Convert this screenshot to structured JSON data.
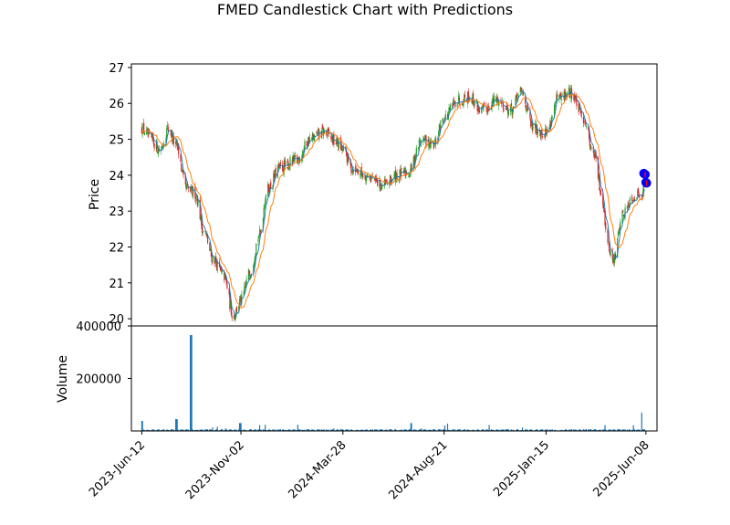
{
  "chart_data": {
    "type": "candlestick",
    "title": "FMED Candlestick Chart with Predictions",
    "xlabel": "",
    "ylabel": "Price",
    "volume_label": "Volume",
    "x_ticks": [
      "2023-Jun-12",
      "2023-Nov-02",
      "2024-Mar-28",
      "2024-Aug-21",
      "2025-Jan-15",
      "2025-Jun-08"
    ],
    "x_range": [
      "2023-05-28",
      "2025-06-24"
    ],
    "price_ylim": [
      19.8,
      27.1
    ],
    "price_ticks": [
      20,
      21,
      22,
      23,
      24,
      25,
      26,
      27
    ],
    "volume_ylim": [
      0,
      400000
    ],
    "volume_ticks": [
      200000,
      400000
    ],
    "price_keypoints": [
      [
        "2023-06-12",
        25.3
      ],
      [
        "2023-06-25",
        25.0
      ],
      [
        "2023-07-08",
        24.7
      ],
      [
        "2023-07-20",
        25.3
      ],
      [
        "2023-08-01",
        24.8
      ],
      [
        "2023-08-15",
        23.6
      ],
      [
        "2023-08-28",
        23.5
      ],
      [
        "2023-09-10",
        22.4
      ],
      [
        "2023-09-22",
        21.7
      ],
      [
        "2023-10-08",
        21.2
      ],
      [
        "2023-10-22",
        20.1
      ],
      [
        "2023-11-02",
        20.5
      ],
      [
        "2023-11-15",
        21.3
      ],
      [
        "2023-11-28",
        22.3
      ],
      [
        "2023-12-10",
        23.6
      ],
      [
        "2023-12-28",
        24.2
      ],
      [
        "2024-01-20",
        24.4
      ],
      [
        "2024-02-10",
        25.0
      ],
      [
        "2024-03-01",
        25.2
      ],
      [
        "2024-03-20",
        24.9
      ],
      [
        "2024-03-28",
        24.7
      ],
      [
        "2024-04-10",
        24.2
      ],
      [
        "2024-05-01",
        24.0
      ],
      [
        "2024-05-25",
        23.7
      ],
      [
        "2024-06-15",
        24.0
      ],
      [
        "2024-07-01",
        24.1
      ],
      [
        "2024-07-20",
        25.0
      ],
      [
        "2024-08-05",
        24.8
      ],
      [
        "2024-08-21",
        25.6
      ],
      [
        "2024-09-10",
        26.1
      ],
      [
        "2024-09-25",
        26.2
      ],
      [
        "2024-10-15",
        25.8
      ],
      [
        "2024-11-05",
        26.1
      ],
      [
        "2024-11-25",
        25.8
      ],
      [
        "2024-12-10",
        26.3
      ],
      [
        "2024-12-28",
        25.3
      ],
      [
        "2025-01-15",
        25.2
      ],
      [
        "2025-02-01",
        26.1
      ],
      [
        "2025-02-20",
        26.3
      ],
      [
        "2025-03-10",
        25.6
      ],
      [
        "2025-03-25",
        24.6
      ],
      [
        "2025-04-05",
        23.5
      ],
      [
        "2025-04-15",
        22.0
      ],
      [
        "2025-04-22",
        21.6
      ],
      [
        "2025-05-05",
        22.9
      ],
      [
        "2025-05-20",
        23.4
      ],
      [
        "2025-06-01",
        23.5
      ],
      [
        "2025-06-08",
        23.8
      ]
    ],
    "predictions": [
      {
        "date": "2025-06-05",
        "price": 24.05
      },
      {
        "date": "2025-06-07",
        "price": 24.02
      },
      {
        "date": "2025-06-08",
        "price": 23.8
      },
      {
        "date": "2025-06-09",
        "price": 23.78
      }
    ],
    "volume_spikes": [
      {
        "date": "2023-06-12",
        "value": 38000
      },
      {
        "date": "2023-08-01",
        "value": 45000
      },
      {
        "date": "2023-08-22",
        "value": 365000
      },
      {
        "date": "2023-11-01",
        "value": 30000
      },
      {
        "date": "2024-07-05",
        "value": 30000
      },
      {
        "date": "2024-08-25",
        "value": 28000
      },
      {
        "date": "2025-06-01",
        "value": 70000
      }
    ],
    "colors": {
      "up": "#2ca02c",
      "down": "#d62728",
      "line_fast": "#1f77b4",
      "line_slow": "#ff7f0e",
      "volume": "#1f77b4",
      "prediction": "#0000ff",
      "prediction_mark": "#ff0000"
    },
    "grid": false,
    "legend": "none"
  }
}
